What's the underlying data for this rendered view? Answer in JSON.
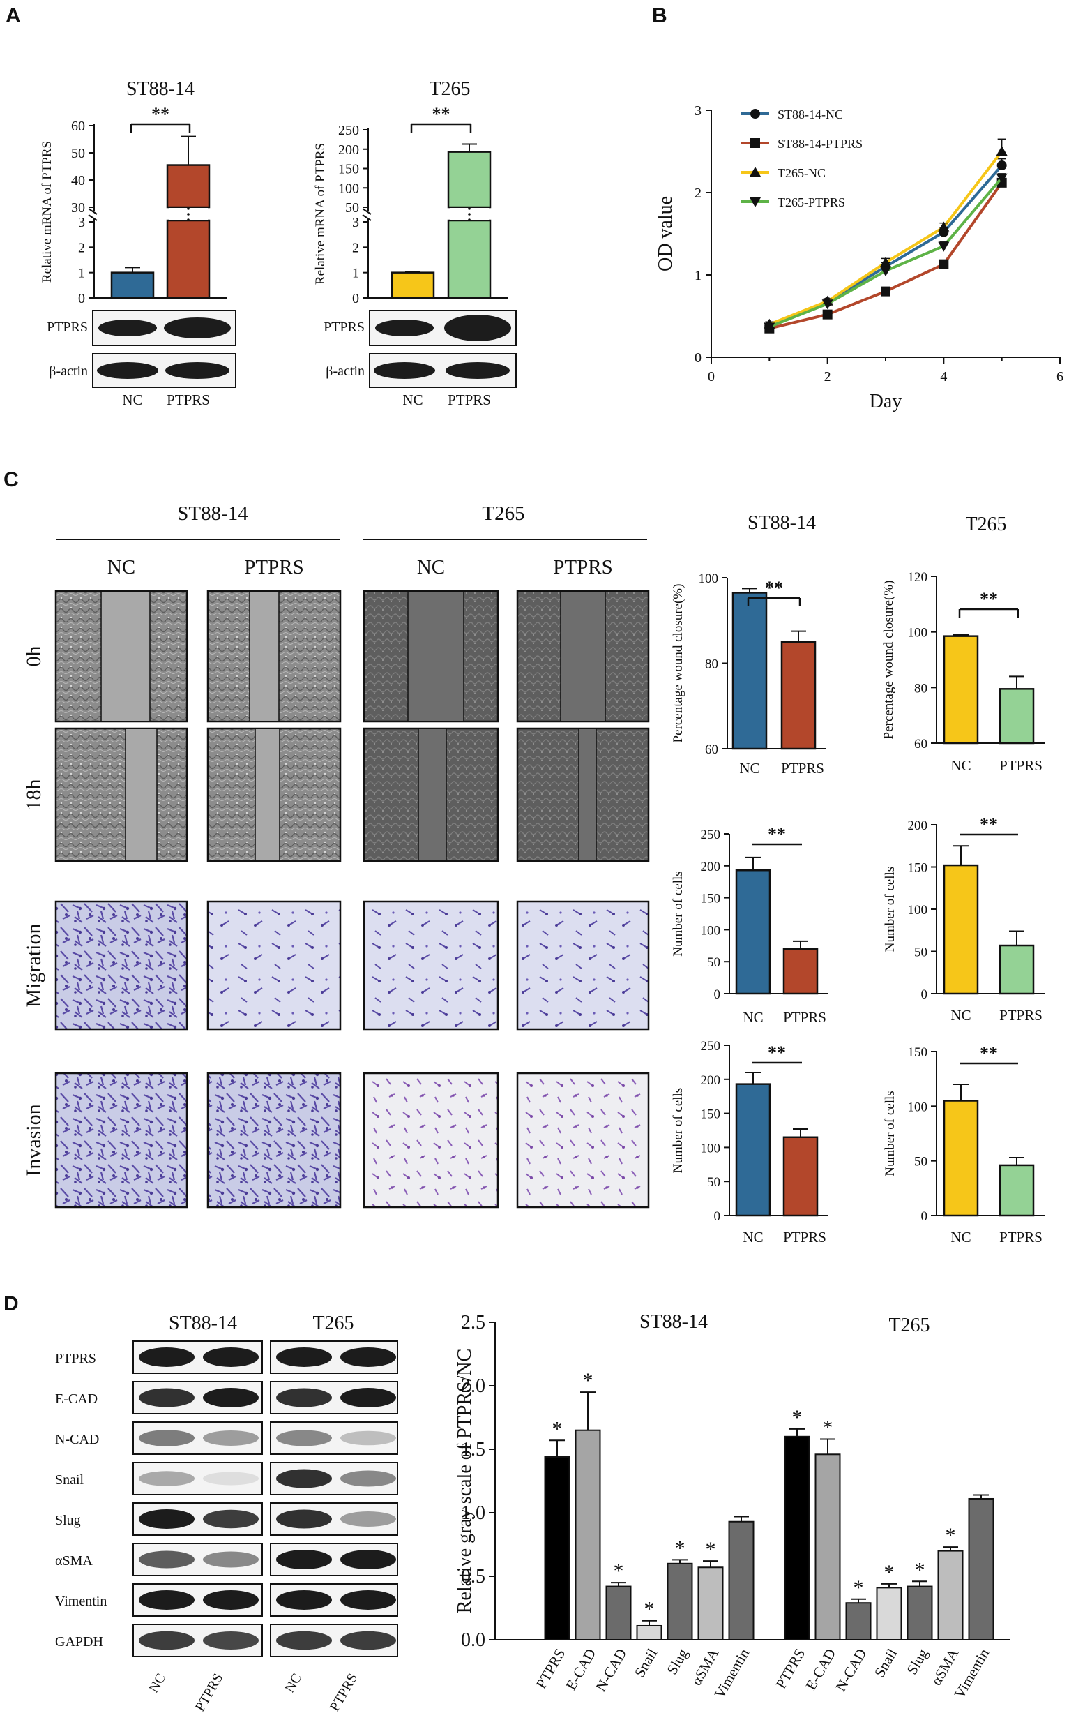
{
  "panels": {
    "A": {
      "letter": "A",
      "charts": [
        {
          "title": "ST88-14",
          "ylabel": "Relative mRNA of PTPRS",
          "categories": [
            "NC",
            "PTPRS"
          ],
          "values": [
            1.0,
            45.5
          ],
          "errors": [
            0.2,
            10.5
          ],
          "colors": [
            "#2f6a96",
            "#b3472b"
          ],
          "upper_ticks": [
            "30",
            "40",
            "50",
            "60"
          ],
          "lower_ticks": [
            "0",
            "1",
            "2",
            "3"
          ],
          "significance": "**",
          "blots": [
            "PTPRS",
            "β-actin"
          ]
        },
        {
          "title": "T265",
          "ylabel": "Relative mRNA of PTPRS",
          "categories": [
            "NC",
            "PTPRS"
          ],
          "values": [
            1.0,
            193
          ],
          "errors": [
            0.04,
            20
          ],
          "colors": [
            "#f6c619",
            "#94d295"
          ],
          "upper_ticks": [
            "50",
            "100",
            "150",
            "200",
            "250"
          ],
          "lower_ticks": [
            "0",
            "1",
            "2",
            "3"
          ],
          "significance": "**",
          "blots": [
            "PTPRS",
            "β-actin"
          ]
        }
      ]
    },
    "B": {
      "letter": "B",
      "xlabel": "Day",
      "ylabel": "OD value",
      "xticks": [
        "0",
        "2",
        "4",
        "6"
      ],
      "yticks": [
        "0",
        "1",
        "2",
        "3"
      ],
      "legend": [
        "ST88-14-NC",
        "ST88-14-PTPRS",
        "T265-NC",
        "T265-PTPRS"
      ]
    },
    "C": {
      "letter": "C",
      "groups": [
        "ST88-14",
        "T265"
      ],
      "conditions": [
        "NC",
        "PTPRS",
        "NC",
        "PTPRS"
      ],
      "rows": [
        "0h",
        "18h",
        "Migration",
        "Invasion"
      ],
      "chart_titles": [
        "ST88-14",
        "T265"
      ],
      "categories": [
        "NC",
        "PTPRS"
      ],
      "wound_ylabel": "Percentage wound closure(%)",
      "cells_ylabel": "Number of cells",
      "significance": "**"
    },
    "D": {
      "letter": "D",
      "blot_groups": [
        "ST88-14",
        "T265"
      ],
      "blot_rows": [
        "PTPRS",
        "E-CAD",
        "N-CAD",
        "Snail",
        "Slug",
        "αSMA",
        "Vimentin",
        "GAPDH"
      ],
      "blot_lanes": [
        "NC",
        "PTPRS",
        "NC",
        "PTPRS"
      ],
      "group_titles": [
        "ST88-14",
        "T265"
      ],
      "ylabel": "Relative gray scale of PTPRS/NC",
      "yticks": [
        "0.0",
        "0.5",
        "1.0",
        "1.5",
        "2.0",
        "2.5"
      ],
      "significance": "*"
    }
  },
  "chart_data": [
    {
      "type": "bar",
      "panel": "A",
      "title": "ST88-14",
      "categories": [
        "NC",
        "PTPRS"
      ],
      "values": [
        1.0,
        45.5
      ],
      "errors": [
        0.2,
        10.5
      ],
      "ylabel": "Relative mRNA of PTPRS",
      "axis_break": [
        3,
        30
      ],
      "ylim": [
        0,
        60
      ],
      "significance": "**"
    },
    {
      "type": "bar",
      "panel": "A",
      "title": "T265",
      "categories": [
        "NC",
        "PTPRS"
      ],
      "values": [
        1.0,
        193
      ],
      "errors": [
        0.04,
        20
      ],
      "ylabel": "Relative mRNA of PTPRS",
      "axis_break": [
        3,
        50
      ],
      "ylim": [
        0,
        250
      ],
      "significance": "**"
    },
    {
      "type": "line",
      "panel": "B",
      "xlabel": "Day",
      "ylabel": "OD value",
      "xlim": [
        0,
        6
      ],
      "ylim": [
        0,
        3
      ],
      "x": [
        1,
        2,
        3,
        4,
        5
      ],
      "series": [
        {
          "name": "ST88-14-NC",
          "values": [
            0.38,
            0.67,
            1.1,
            1.52,
            2.33
          ],
          "color": "#2f6a96",
          "marker": "circle"
        },
        {
          "name": "ST88-14-PTPRS",
          "values": [
            0.35,
            0.52,
            0.8,
            1.13,
            2.12
          ],
          "color": "#b3472b",
          "marker": "square"
        },
        {
          "name": "T265-NC",
          "values": [
            0.4,
            0.68,
            1.15,
            1.58,
            2.5
          ],
          "color": "#f6c619",
          "marker": "triangle-up"
        },
        {
          "name": "T265-PTPRS",
          "values": [
            0.37,
            0.65,
            1.05,
            1.35,
            2.18
          ],
          "color": "#5eb347",
          "marker": "triangle-down"
        }
      ],
      "errors": [
        [
          0.03,
          0.03,
          0.05,
          0.05,
          0.08
        ],
        [
          0.03,
          0.03,
          0.03,
          0.03,
          0.05
        ],
        [
          0.03,
          0.03,
          0.05,
          0.05,
          0.15
        ],
        [
          0.03,
          0.03,
          0.05,
          0.05,
          0.05
        ]
      ]
    },
    {
      "type": "bar",
      "panel": "C",
      "title": "ST88-14",
      "categories": [
        "NC",
        "PTPRS"
      ],
      "values": [
        96.5,
        85
      ],
      "errors": [
        1,
        2.5
      ],
      "ylabel": "Percentage wound closure(%)",
      "ylim": [
        60,
        100
      ],
      "significance": "**"
    },
    {
      "type": "bar",
      "panel": "C",
      "title": "T265",
      "categories": [
        "NC",
        "PTPRS"
      ],
      "values": [
        98.5,
        79.5
      ],
      "errors": [
        0.5,
        4.5
      ],
      "ylabel": "Percentage wound closure(%)",
      "ylim": [
        60,
        120
      ],
      "significance": "**"
    },
    {
      "type": "bar",
      "panel": "C",
      "categories": [
        "NC",
        "PTPRS"
      ],
      "values": [
        193,
        70
      ],
      "errors": [
        20,
        12
      ],
      "ylabel": "Number of cells",
      "ylim": [
        0,
        250
      ],
      "significance": "**"
    },
    {
      "type": "bar",
      "panel": "C",
      "categories": [
        "NC",
        "PTPRS"
      ],
      "values": [
        152,
        57
      ],
      "errors": [
        23,
        17
      ],
      "ylabel": "Number of cells",
      "ylim": [
        0,
        200
      ],
      "significance": "**"
    },
    {
      "type": "bar",
      "panel": "C",
      "categories": [
        "NC",
        "PTPRS"
      ],
      "values": [
        193,
        115
      ],
      "errors": [
        17,
        12
      ],
      "ylabel": "Number of cells",
      "ylim": [
        0,
        250
      ],
      "significance": "**"
    },
    {
      "type": "bar",
      "panel": "C",
      "categories": [
        "NC",
        "PTPRS"
      ],
      "values": [
        105,
        46
      ],
      "errors": [
        15,
        7
      ],
      "ylabel": "Number of cells",
      "ylim": [
        0,
        150
      ],
      "significance": "**"
    },
    {
      "type": "bar",
      "panel": "D",
      "ylabel": "Relative gray scale of PTPRS/NC",
      "ylim": [
        0,
        2.5
      ],
      "categories": [
        "PTPRS",
        "E-CAD",
        "N-CAD",
        "Snail",
        "Slug",
        "αSMA",
        "Vimentin"
      ],
      "series": [
        {
          "name": "ST88-14",
          "values": [
            1.44,
            1.65,
            0.42,
            0.11,
            0.6,
            0.57,
            0.93
          ],
          "errors": [
            0.13,
            0.3,
            0.03,
            0.04,
            0.03,
            0.05,
            0.04
          ],
          "significant": [
            true,
            true,
            true,
            true,
            true,
            true,
            false
          ]
        },
        {
          "name": "T265",
          "values": [
            1.6,
            1.46,
            0.29,
            0.41,
            0.42,
            0.7,
            1.11
          ],
          "errors": [
            0.06,
            0.12,
            0.03,
            0.03,
            0.04,
            0.03,
            0.03
          ],
          "significant": [
            true,
            true,
            true,
            true,
            true,
            true,
            false
          ]
        }
      ],
      "colors": [
        "#000000",
        "#a5a5a5",
        "#6b6b6b",
        "#d9d9d9",
        "#6b6b6b",
        "#bdbdbd",
        "#6b6b6b"
      ]
    }
  ]
}
